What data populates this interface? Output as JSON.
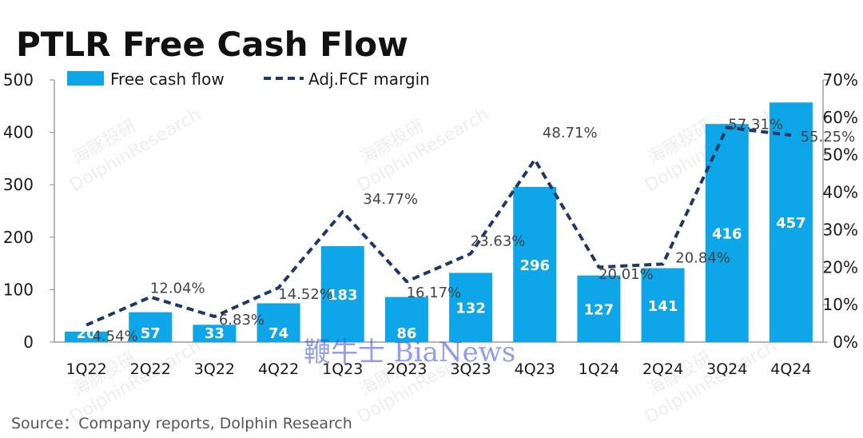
{
  "chart_data": {
    "type": "bar",
    "title": "PTLR Free Cash Flow",
    "categories": [
      "1Q22",
      "2Q22",
      "3Q22",
      "4Q22",
      "1Q23",
      "2Q23",
      "3Q23",
      "4Q23",
      "1Q24",
      "2Q24",
      "3Q24",
      "4Q24"
    ],
    "series": [
      {
        "name": "Free cash flow",
        "axis": "left",
        "color": "#0ea5e9",
        "values": [
          20,
          57,
          33,
          74,
          183,
          86,
          132,
          296,
          127,
          141,
          416,
          457
        ]
      },
      {
        "name": "Adj.FCF margin",
        "type": "line",
        "axis": "right",
        "color": "#1f3864",
        "values": [
          4.54,
          12.04,
          6.83,
          14.52,
          34.77,
          16.17,
          23.63,
          48.71,
          20.01,
          20.84,
          57.31,
          55.25
        ],
        "labels": [
          "4.54%",
          "12.04%",
          "6.83%",
          "14.52%",
          "34.77%",
          "16.17%",
          "23.63%",
          "48.71%",
          "20.01%",
          "20.84%",
          "57.31%",
          "55.25%"
        ]
      }
    ],
    "ylim": [
      0,
      500
    ],
    "yticks": [
      "0",
      "100",
      "200",
      "300",
      "400",
      "500"
    ],
    "y2lim": [
      0,
      70
    ],
    "y2ticks": [
      "0%",
      "10%",
      "20%",
      "30%",
      "40%",
      "50%",
      "60%",
      "70%"
    ],
    "legend_position": "top-left",
    "grid": false
  },
  "source": "Source：Company reports, Dolphin Research",
  "watermarks": {
    "brand_cn": "海豚投研",
    "brand_en": "DolphinResearch",
    "overlay": "鞭牛士 BiaNews"
  }
}
